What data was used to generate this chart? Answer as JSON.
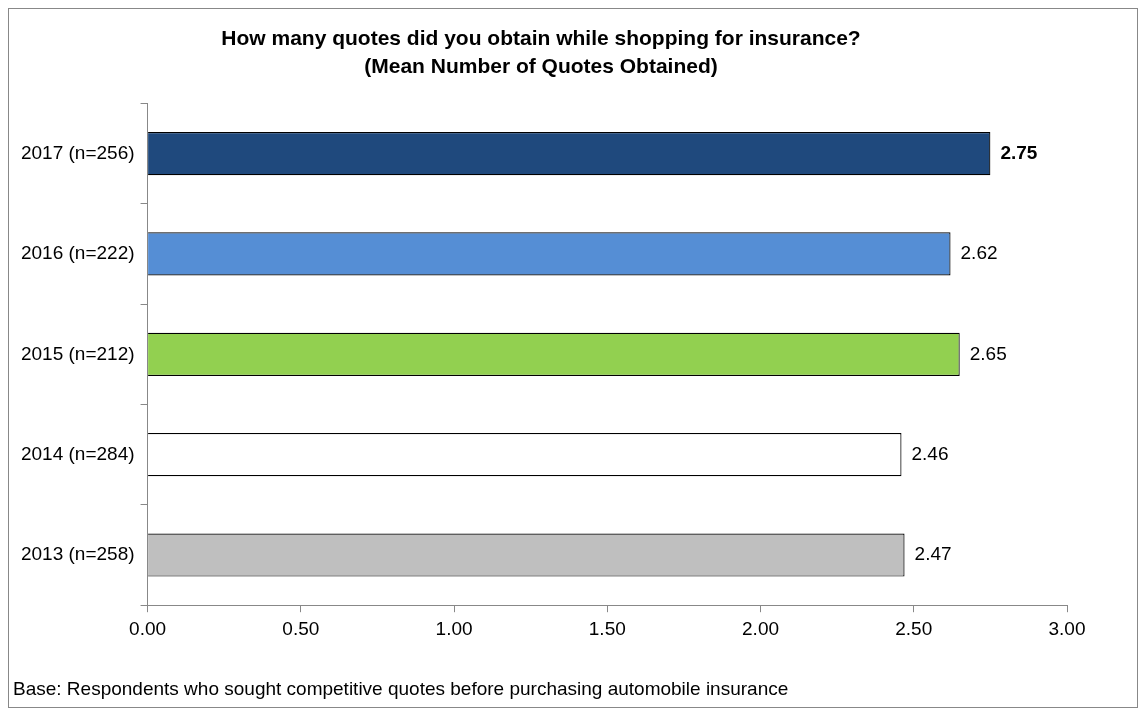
{
  "chart_data": {
    "type": "bar",
    "orientation": "horizontal",
    "title": "How many quotes did you obtain while shopping for insurance?",
    "subtitle": "(Mean Number of Quotes Obtained)",
    "categories": [
      "2017 (n=256)",
      "2016 (n=222)",
      "2015 (n=212)",
      "2014 (n=284)",
      "2013 (n=258)"
    ],
    "values": [
      2.75,
      2.62,
      2.65,
      2.46,
      2.47
    ],
    "colors": [
      "#1f497d",
      "#558ed5",
      "#92d050",
      "#ffffff",
      "#bfbfbf"
    ],
    "xlim": [
      0,
      3
    ],
    "xticks": [
      {
        "value": 0,
        "label": "0.00"
      },
      {
        "value": 0.5,
        "label": "0.50"
      },
      {
        "value": 1,
        "label": "1.00"
      },
      {
        "value": 1.5,
        "label": "1.50"
      },
      {
        "value": 2,
        "label": "2.00"
      },
      {
        "value": 2.5,
        "label": "2.50"
      },
      {
        "value": 3,
        "label": "3.00"
      }
    ],
    "data_labels": true,
    "grid": false,
    "legend": false,
    "annotations": [
      "Base: Respondents who sought competitive quotes before purchasing automobile insurance"
    ]
  }
}
